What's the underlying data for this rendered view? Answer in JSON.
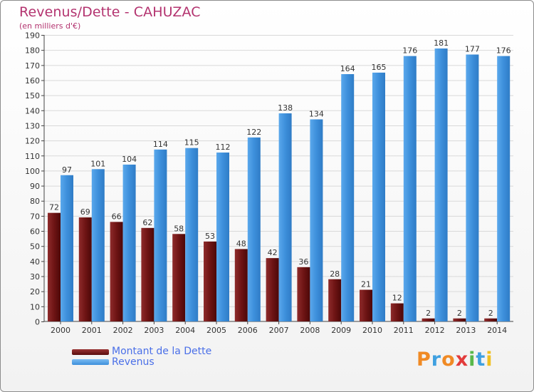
{
  "title": "Revenus/Dette - CAHUZAC",
  "subtitle": "(en milliers d'€)",
  "chart_data": {
    "type": "bar",
    "title": "Revenus/Dette - CAHUZAC",
    "ylabel": "(en milliers d'€)",
    "categories": [
      "2000",
      "2001",
      "2002",
      "2003",
      "2004",
      "2005",
      "2006",
      "2007",
      "2008",
      "2009",
      "2010",
      "2011",
      "2012",
      "2013",
      "2014"
    ],
    "series": [
      {
        "name": "Montant de la Dette",
        "color": "#7a1a1a",
        "values": [
          72,
          69,
          66,
          62,
          58,
          53,
          48,
          42,
          36,
          28,
          21,
          12,
          2,
          2,
          2
        ]
      },
      {
        "name": "Revenus",
        "color": "#3d8fdb",
        "values": [
          97,
          101,
          104,
          114,
          115,
          112,
          122,
          138,
          134,
          164,
          165,
          176,
          181,
          177,
          176
        ]
      }
    ],
    "ylim": [
      0,
      190
    ],
    "yticks": [
      0,
      10,
      20,
      30,
      40,
      50,
      60,
      70,
      80,
      90,
      100,
      110,
      120,
      130,
      140,
      150,
      160,
      170,
      180,
      190
    ],
    "grid": true,
    "legend_position": "bottom-left"
  },
  "legend": {
    "items": [
      {
        "label": "Montant de la Dette",
        "color": "#7a1a1a"
      },
      {
        "label": "Revenus",
        "color": "#3d8fdb"
      }
    ]
  },
  "logo": {
    "text": "Proxiti",
    "colors": [
      "#f08a24",
      "#3fa0e0",
      "#f08a24",
      "#e23b3b",
      "#58b84a",
      "#3fa0e0",
      "#f0c020"
    ]
  }
}
